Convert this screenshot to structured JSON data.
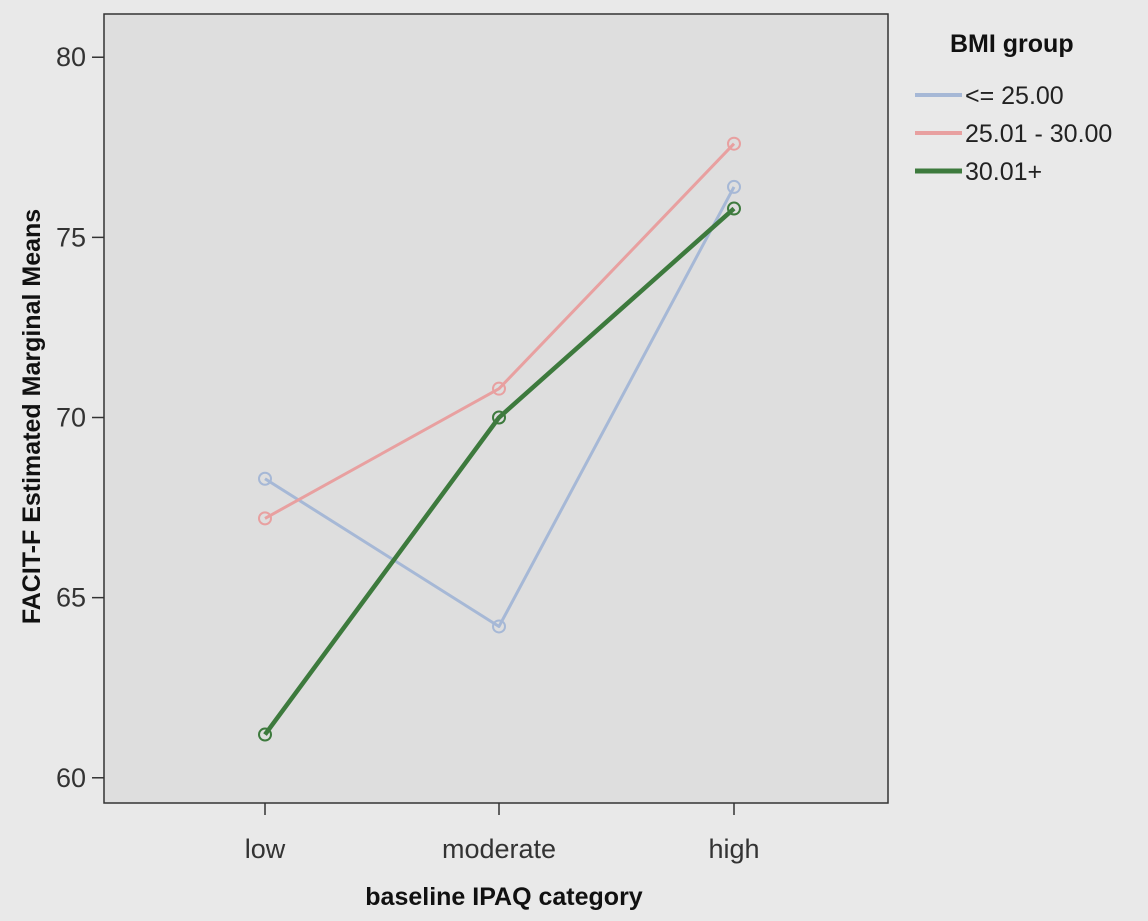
{
  "chart_data": {
    "type": "line",
    "xlabel": "baseline IPAQ category",
    "ylabel": "FACIT-F Estimated Marginal Means",
    "categories": [
      "low",
      "moderate",
      "high"
    ],
    "ylim": [
      59.3,
      81.2
    ],
    "yticks": [
      60,
      65,
      70,
      75,
      80
    ],
    "grid": false,
    "legend": {
      "title": "BMI group",
      "placement": "right"
    },
    "series": [
      {
        "name": "<= 25.00",
        "color": "#a6b8d6",
        "values": [
          68.3,
          64.2,
          76.4
        ]
      },
      {
        "name": "25.01 - 30.00",
        "color": "#e8a0a0",
        "values": [
          67.2,
          70.8,
          77.6
        ]
      },
      {
        "name": "30.01+",
        "color": "#3d7a3d",
        "values": [
          61.2,
          70.0,
          75.8
        ]
      }
    ]
  },
  "colors": {
    "page_background": "#e9e9e9",
    "plot_background": "#dedede",
    "axis": "#333333"
  }
}
